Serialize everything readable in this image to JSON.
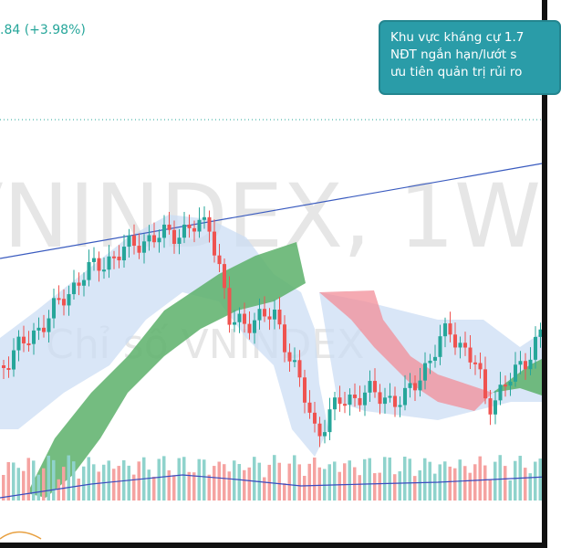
{
  "header": {
    "change": ".84 (+3.98%)"
  },
  "watermark": {
    "symbol": "VNINDEX, 1W",
    "description": "Chỉ số VNINDEX"
  },
  "note": {
    "lines": [
      "Khu vực kháng cự 1.7",
      "NĐT ngắn hạn/lướt s",
      "ưu tiên quản trị rủi ro"
    ]
  }
}
